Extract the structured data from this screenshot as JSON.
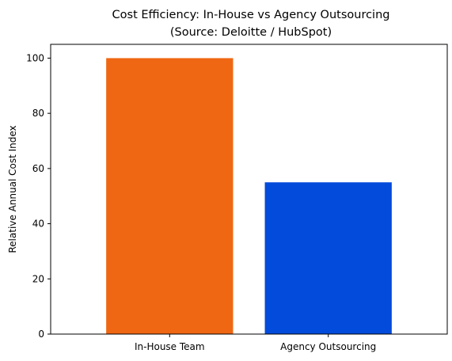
{
  "chart_data": {
    "type": "bar",
    "title": "Cost Efficiency: In-House vs Agency Outsourcing",
    "subtitle": "(Source: Deloitte / HubSpot)",
    "xlabel": "",
    "ylabel": "Relative Annual Cost Index",
    "categories": [
      "In-House Team",
      "Agency Outsourcing"
    ],
    "values": [
      100,
      55
    ],
    "colors": [
      "#f06713",
      "#034bdb"
    ],
    "ylim": [
      0,
      105
    ],
    "yticks": [
      0,
      20,
      40,
      60,
      80,
      100
    ],
    "grid": false
  }
}
